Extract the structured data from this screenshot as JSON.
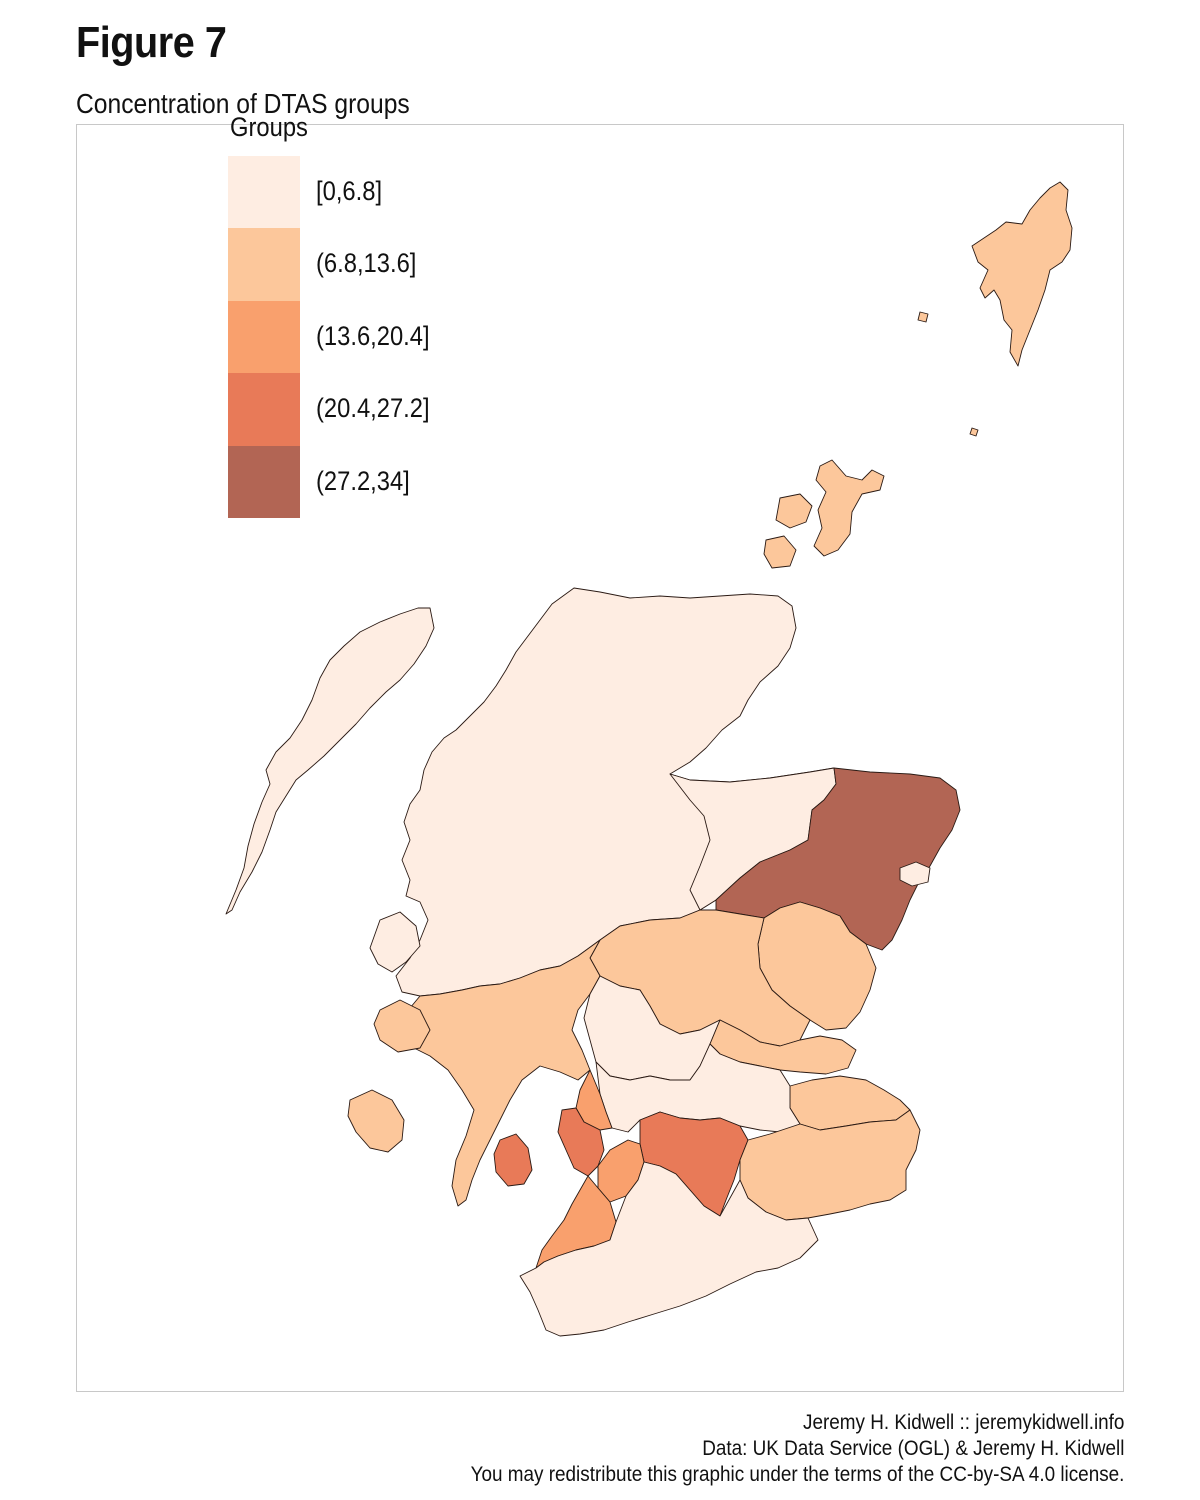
{
  "figure": {
    "title": "Figure 7",
    "subtitle": "Concentration of DTAS groups"
  },
  "legend": {
    "title": "Groups",
    "items": [
      {
        "label": "[0,6.8]",
        "color": "#feede2"
      },
      {
        "label": "(6.8,13.6]",
        "color": "#fcc79b"
      },
      {
        "label": "(13.6,20.4]",
        "color": "#f9a06d"
      },
      {
        "label": "(20.4,27.2]",
        "color": "#e87a58"
      },
      {
        "label": "(27.2,34]",
        "color": "#b26554"
      }
    ]
  },
  "caption": {
    "line1": "Jeremy H. Kidwell :: jeremykidwell.info",
    "line2": "Data: UK Data Service (OGL) & Jeremy H. Kidwell",
    "line3": "You may redistribute this graphic under the terms of the CC-by-SA 4.0 license."
  },
  "map": {
    "regions": [
      {
        "name": "highland",
        "class": 0
      },
      {
        "name": "western-isles",
        "class": 0
      },
      {
        "name": "orkney",
        "class": 1
      },
      {
        "name": "shetland",
        "class": 1
      },
      {
        "name": "moray",
        "class": 0
      },
      {
        "name": "aberdeenshire",
        "class": 4
      },
      {
        "name": "aberdeen-city",
        "class": 0
      },
      {
        "name": "angus",
        "class": 1
      },
      {
        "name": "perth-kinross",
        "class": 1
      },
      {
        "name": "argyll-bute",
        "class": 1
      },
      {
        "name": "stirling",
        "class": 0
      },
      {
        "name": "fife",
        "class": 1
      },
      {
        "name": "central-belt",
        "class": 0
      },
      {
        "name": "north-ayrshire",
        "class": 3
      },
      {
        "name": "inverclyde-renfrew",
        "class": 2
      },
      {
        "name": "east-ayrshire",
        "class": 2
      },
      {
        "name": "south-ayrshire",
        "class": 2
      },
      {
        "name": "south-lanarkshire",
        "class": 3
      },
      {
        "name": "arran",
        "class": 3
      },
      {
        "name": "scottish-borders",
        "class": 1
      },
      {
        "name": "east-lothian",
        "class": 1
      },
      {
        "name": "dumfries-galloway",
        "class": 0
      }
    ]
  }
}
